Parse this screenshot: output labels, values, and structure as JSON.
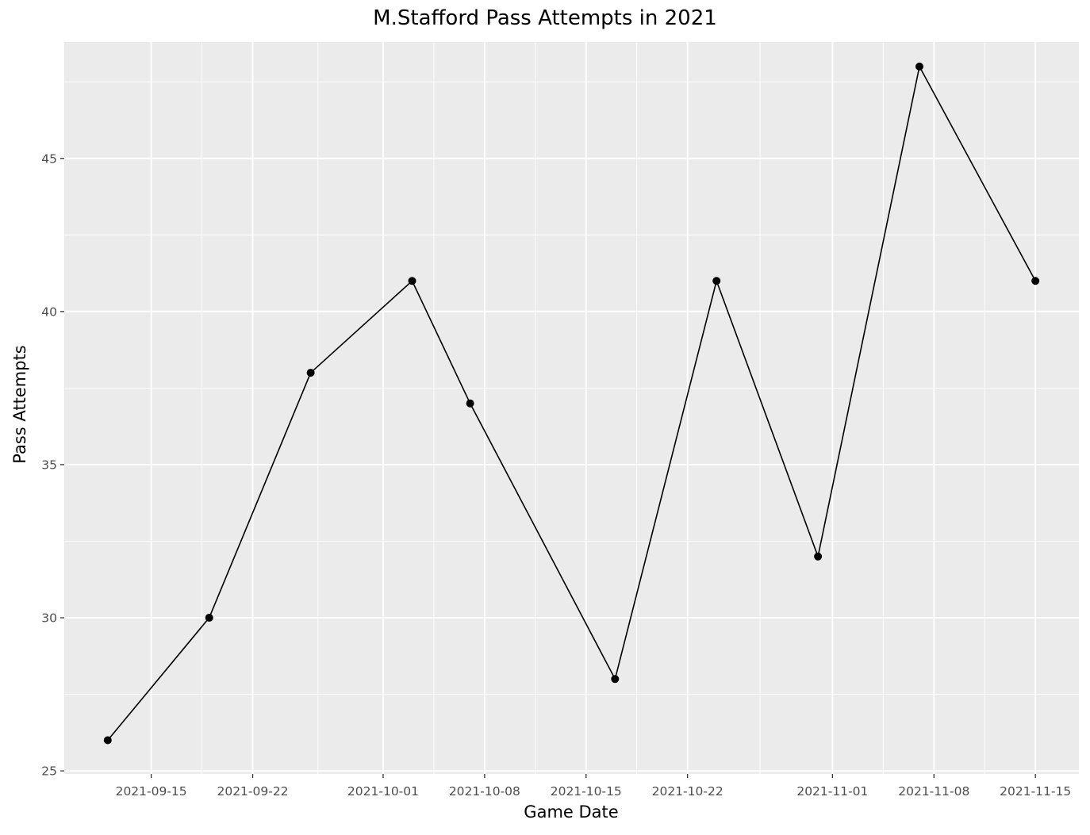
{
  "chart_data": {
    "type": "line",
    "title": "M.Stafford Pass Attempts in 2021",
    "xlabel": "Game Date",
    "ylabel": "Pass Attempts",
    "x": [
      "2021-09-12",
      "2021-09-19",
      "2021-09-26",
      "2021-10-03",
      "2021-10-07",
      "2021-10-17",
      "2021-10-24",
      "2021-10-31",
      "2021-11-07",
      "2021-11-15"
    ],
    "series": [
      {
        "values": [
          26,
          30,
          38,
          41,
          37,
          28,
          41,
          32,
          48,
          41
        ]
      }
    ],
    "xlim": [
      "2021-09-09",
      "2021-11-18"
    ],
    "ylim": [
      24.9,
      48.8
    ],
    "x_ticks": [
      "2021-09-15",
      "2021-09-22",
      "2021-10-01",
      "2021-10-08",
      "2021-10-15",
      "2021-10-22",
      "2021-11-01",
      "2021-11-08",
      "2021-11-15"
    ],
    "y_ticks": [
      25,
      30,
      35,
      40,
      45
    ],
    "grid": true,
    "legend": "none",
    "colors": {
      "panel": "#ebebeb",
      "grid": "#ffffff",
      "line": "#000000",
      "point": "#000000",
      "tick_text": "#4d4d4d"
    }
  }
}
